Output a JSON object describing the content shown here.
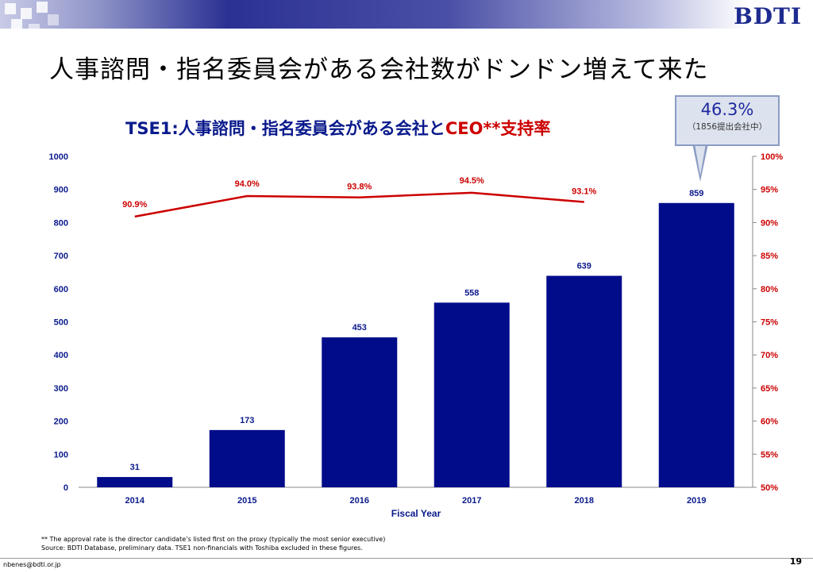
{
  "slide": {
    "logo": "BDTI",
    "title": "人事諮問・指名委員会がある会社数がドンドン増えて来た",
    "chart_title_part1": "TSE1:人事諮問・指名委員会がある会社と",
    "chart_title_part2": "CEO**支持率",
    "callout_value": "46.3%",
    "callout_note": "（1856提出会社中）",
    "footnote_1": "** The approval rate is the director candidate’s listed first on the proxy (typically the most senior executive)",
    "footnote_2": "Source: BDTI Database, preliminary data. TSE1 non-financials with Toshiba excluded in these figures.",
    "email": "nbenes@bdti.or.jp",
    "page_number": "19"
  },
  "colors": {
    "bar": "#000c8a",
    "line": "#cc0000",
    "axis_left_text": "#0a1a8c",
    "axis_right_text": "#cc0000"
  },
  "chart_data": {
    "type": "bar",
    "xlabel": "Fiscal Year",
    "categories": [
      "2014",
      "2015",
      "2016",
      "2017",
      "2018",
      "2019"
    ],
    "series": [
      {
        "type": "bar",
        "axis": "left",
        "values": [
          31,
          173,
          453,
          558,
          639,
          859
        ]
      },
      {
        "type": "line",
        "axis": "right",
        "values": [
          90.9,
          94.0,
          93.8,
          94.5,
          93.1,
          null
        ],
        "labels": [
          "90.9%",
          "94.0%",
          "93.8%",
          "94.5%",
          "93.1%",
          null
        ]
      }
    ],
    "y_left": {
      "min": 0,
      "max": 1000,
      "ticks": [
        0,
        100,
        200,
        300,
        400,
        500,
        600,
        700,
        800,
        900,
        1000
      ]
    },
    "y_right": {
      "min": 50,
      "max": 100,
      "ticks": [
        50,
        55,
        60,
        65,
        70,
        75,
        80,
        85,
        90,
        95,
        100
      ],
      "unit": "%"
    },
    "grid": false
  }
}
